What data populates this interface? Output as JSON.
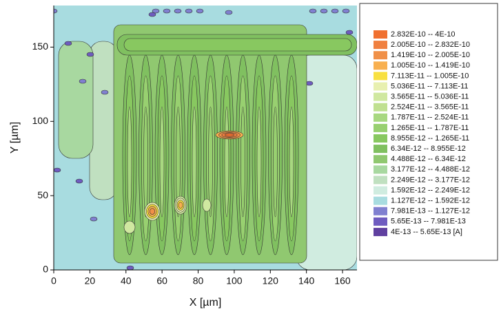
{
  "chart_data": {
    "type": "contour",
    "xlabel": "X [µm]",
    "ylabel": "Y [µm]",
    "xlim": [
      0,
      168
    ],
    "ylim": [
      0,
      178
    ],
    "xticks": [
      0,
      20,
      40,
      60,
      80,
      100,
      120,
      140,
      160
    ],
    "yticks": [
      0,
      50,
      100,
      150
    ],
    "legend": [
      {
        "label": "2.832E-10 -- 4E-10",
        "color": "#f07030"
      },
      {
        "label": "2.005E-10 -- 2.832E-10",
        "color": "#f08040"
      },
      {
        "label": "1.419E-10 -- 2.005E-10",
        "color": "#f09048"
      },
      {
        "label": "1.005E-10 -- 1.419E-10",
        "color": "#f8b050"
      },
      {
        "label": "7.113E-11 -- 1.005E-10",
        "color": "#f8e040"
      },
      {
        "label": "5.036E-11 -- 7.113E-11",
        "color": "#e8f0b0"
      },
      {
        "label": "3.565E-11 -- 5.036E-11",
        "color": "#d0e8a0"
      },
      {
        "label": "2.524E-11 -- 3.565E-11",
        "color": "#c0e090"
      },
      {
        "label": "1.787E-11 -- 2.524E-11",
        "color": "#a8d880"
      },
      {
        "label": "1.265E-11 -- 1.787E-11",
        "color": "#98d070"
      },
      {
        "label": "8.955E-12 -- 1.265E-11",
        "color": "#88c860"
      },
      {
        "label": "6.34E-12 -- 8.955E-12",
        "color": "#80c060"
      },
      {
        "label": "4.488E-12 -- 6.34E-12",
        "color": "#90c870"
      },
      {
        "label": "3.177E-12 -- 4.488E-12",
        "color": "#a8d8a0"
      },
      {
        "label": "2.249E-12 -- 3.177E-12",
        "color": "#c0e0c0"
      },
      {
        "label": "1.592E-12 -- 2.249E-12",
        "color": "#d0ece0"
      },
      {
        "label": "1.127E-12 -- 1.592E-12",
        "color": "#a8dce0"
      },
      {
        "label": "7.981E-13 -- 1.127E-12",
        "color": "#8080d0"
      },
      {
        "label": "5.65E-13 -- 7.981E-13",
        "color": "#6f5cc0"
      },
      {
        "label": "4E-13 -- 5.65E-13 [A]",
        "color": "#6040a0"
      }
    ]
  }
}
